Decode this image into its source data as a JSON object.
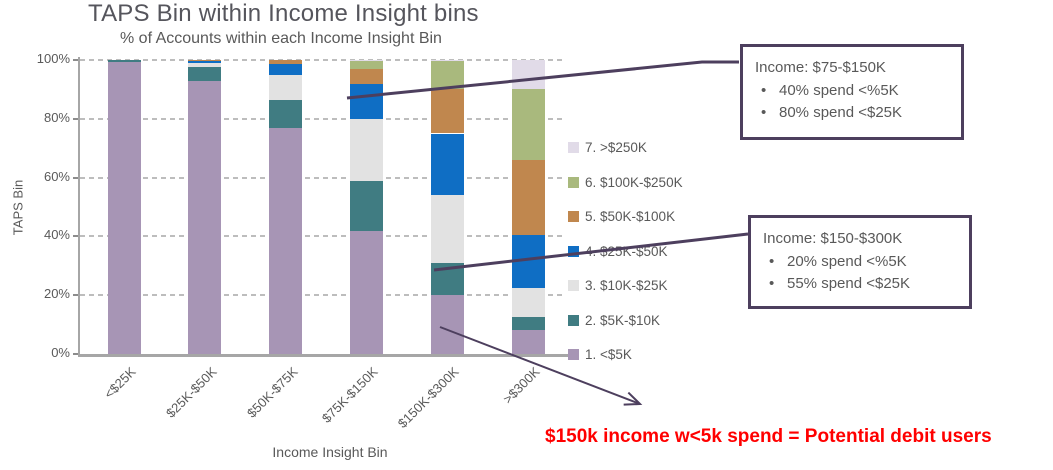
{
  "chart": {
    "title": "TAPS Bin within Income Insight bins",
    "subtitle": "% of Accounts within each Income Insight Bin",
    "x_axis_title": "Income Insight Bin",
    "y_axis_title": "TAPS Bin"
  },
  "chart_data": {
    "type": "bar",
    "stacked": true,
    "title": "TAPS Bin within Income Insight bins",
    "subtitle": "% of Accounts within each Income Insight Bin",
    "xlabel": "Income Insight Bin",
    "ylabel": "TAPS Bin",
    "ylim": [
      0,
      100
    ],
    "y_ticks": [
      "0%",
      "20%",
      "40%",
      "60%",
      "80%",
      "100%"
    ],
    "grid": "horizontal-dashed",
    "legend_position": "right",
    "legend_order": "reversed (7 at top, 1 at bottom)",
    "categories": [
      "<$25K",
      "$25K-$50K",
      "$50K-$75K",
      "$75K-$150K",
      "$150K-$300K",
      ">$300K"
    ],
    "series": [
      {
        "name": "1. <$5K",
        "color": "#a795b5",
        "values": [
          99.3,
          93,
          77,
          42,
          20,
          8
        ]
      },
      {
        "name": "2. $5K-$10K",
        "color": "#407c82",
        "values": [
          0.7,
          4.5,
          9.5,
          17,
          11,
          4.5
        ]
      },
      {
        "name": "3. $10K-$25K",
        "color": "#e2e2e2",
        "values": [
          0,
          1.5,
          8.5,
          21,
          23,
          10
        ]
      },
      {
        "name": "4. $25K-$50K",
        "color": "#0f6ec4",
        "values": [
          0,
          0.6,
          3.5,
          12,
          21,
          18
        ]
      },
      {
        "name": "5. $50K-$100K",
        "color": "#c0874e",
        "values": [
          0,
          0.4,
          1.5,
          5,
          15,
          25.5
        ]
      },
      {
        "name": "6. $100K-$250K",
        "color": "#a9b97d",
        "values": [
          0,
          0,
          0,
          2.5,
          9.5,
          24
        ]
      },
      {
        "name": "7. >$250K",
        "color": "#e1dbe8",
        "values": [
          0,
          0,
          0,
          0.5,
          0.5,
          10
        ]
      }
    ]
  },
  "callouts": [
    {
      "title": "Income: $75-$150K",
      "bullets": [
        "40% spend <%5K",
        "80% spend <$25K"
      ]
    },
    {
      "title": "Income: $150-$300K",
      "bullets": [
        "20% spend <%5K",
        "55% spend <$25K"
      ]
    }
  ],
  "annotation": {
    "note": "$150k income w<5k spend = Potential debit users",
    "note_color": "#ff0000",
    "connector_color": "#4d3f5e"
  },
  "colors": {
    "title_text": "#55555c",
    "axis_text": "#595959",
    "gridline": "#bdbdbd",
    "axis_line": "#a6a6a6",
    "callout_border": "#4d3f5e"
  }
}
